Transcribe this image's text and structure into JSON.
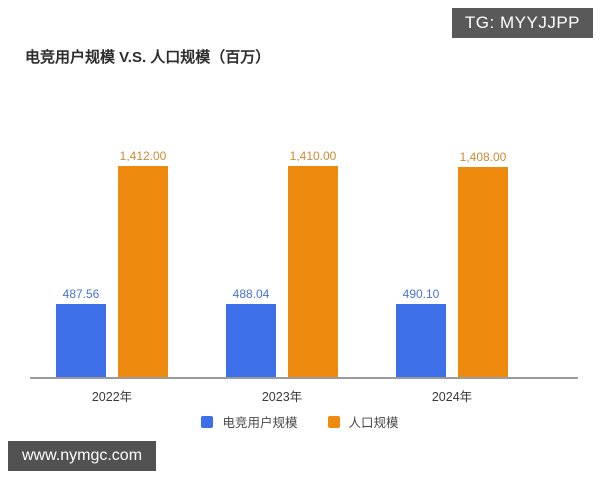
{
  "badge": {
    "text": "TG: MYYJJPP",
    "bg": "#595959",
    "fg": "#ffffff"
  },
  "title": {
    "text": "电竞用户规模 V.S. 人口规模（百万）"
  },
  "watermark": {
    "text": "www.nymgc.com",
    "bg": "#525252",
    "fg": "#ffffff"
  },
  "chart_data": {
    "type": "bar",
    "title": "电竞用户规模 V.S. 人口规模（百万）",
    "categories": [
      "2022年",
      "2023年",
      "2024年"
    ],
    "series": [
      {
        "name": "电竞用户规模",
        "color": "#3D6FE8",
        "label_color": "#4A73D6",
        "values": [
          487.56,
          488.04,
          490.1
        ],
        "labels": [
          "487.56",
          "488.04",
          "490.10"
        ]
      },
      {
        "name": "人口规模",
        "color": "#EE8A0E",
        "label_color": "#CE8C35",
        "values": [
          1412.0,
          1410.0,
          1408.0
        ],
        "labels": [
          "1,412.00",
          "1,410.00",
          "1,408.00"
        ]
      }
    ],
    "ylim": [
      0,
      1500
    ],
    "grid": false,
    "legend_position": "bottom",
    "value_labels": true,
    "axis_color": "#9b9b9b",
    "tick_color": "#3a3a3a"
  }
}
